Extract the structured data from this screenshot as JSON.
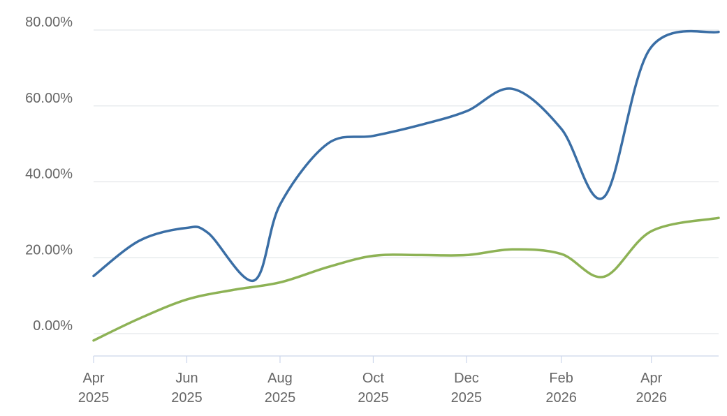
{
  "chart_data": {
    "type": "line",
    "title": "",
    "xlabel": "",
    "ylabel": "",
    "x_ticks": [
      {
        "date": "2025-04-01",
        "month": "Apr",
        "year": "2025"
      },
      {
        "date": "2025-06-01",
        "month": "Jun",
        "year": "2025"
      },
      {
        "date": "2025-08-01",
        "month": "Aug",
        "year": "2025"
      },
      {
        "date": "2025-10-01",
        "month": "Oct",
        "year": "2025"
      },
      {
        "date": "2025-12-01",
        "month": "Dec",
        "year": "2025"
      },
      {
        "date": "2026-02-01",
        "month": "Feb",
        "year": "2026"
      },
      {
        "date": "2026-04-01",
        "month": "Apr",
        "year": "2026"
      }
    ],
    "y_ticks": [
      {
        "value": 0,
        "label": "0.00%"
      },
      {
        "value": 20,
        "label": "20.00%"
      },
      {
        "value": 40,
        "label": "40.00%"
      },
      {
        "value": 60,
        "label": "60.00%"
      },
      {
        "value": 80,
        "label": "80.00%"
      }
    ],
    "xlim": [
      "2025-04-01",
      "2026-05-15"
    ],
    "ylim": [
      -6.5,
      83
    ],
    "grid": true,
    "legend": "none",
    "series": [
      {
        "color": "#3a6ea5",
        "points": [
          {
            "x": "2025-04-01",
            "y": 15.2
          },
          {
            "x": "2025-05-01",
            "y": 24.5
          },
          {
            "x": "2025-05-31",
            "y": 27.8
          },
          {
            "x": "2025-06-15",
            "y": 26.5
          },
          {
            "x": "2025-07-15",
            "y": 14.0
          },
          {
            "x": "2025-08-01",
            "y": 34.0
          },
          {
            "x": "2025-09-01",
            "y": 50.0
          },
          {
            "x": "2025-10-01",
            "y": 52.1
          },
          {
            "x": "2025-11-01",
            "y": 55.0
          },
          {
            "x": "2025-12-01",
            "y": 58.6
          },
          {
            "x": "2025-12-31",
            "y": 64.5
          },
          {
            "x": "2026-02-01",
            "y": 54.0
          },
          {
            "x": "2026-03-01",
            "y": 36.0
          },
          {
            "x": "2026-03-31",
            "y": 75.0
          },
          {
            "x": "2026-05-15",
            "y": 79.5
          }
        ]
      },
      {
        "color": "#8db255",
        "points": [
          {
            "x": "2025-04-01",
            "y": -1.8
          },
          {
            "x": "2025-05-01",
            "y": 4.0
          },
          {
            "x": "2025-06-01",
            "y": 9.0
          },
          {
            "x": "2025-07-01",
            "y": 11.5
          },
          {
            "x": "2025-08-01",
            "y": 13.5
          },
          {
            "x": "2025-09-01",
            "y": 17.5
          },
          {
            "x": "2025-10-01",
            "y": 20.5
          },
          {
            "x": "2025-11-01",
            "y": 20.7
          },
          {
            "x": "2025-12-01",
            "y": 20.7
          },
          {
            "x": "2025-12-31",
            "y": 22.2
          },
          {
            "x": "2026-02-01",
            "y": 21.0
          },
          {
            "x": "2026-03-01",
            "y": 15.0
          },
          {
            "x": "2026-04-01",
            "y": 27.0
          },
          {
            "x": "2026-05-15",
            "y": 30.5
          }
        ]
      }
    ]
  }
}
